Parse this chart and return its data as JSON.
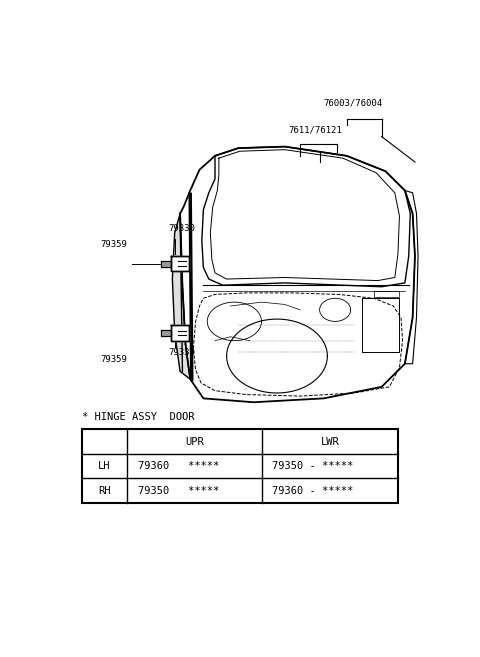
{
  "bg_color": "#ffffff",
  "part_labels_top_right": [
    "76003/76004",
    "7611/76121"
  ],
  "part_labels_left_upper": [
    "79359",
    "79330"
  ],
  "part_labels_left_lower": [
    "79330",
    "79359"
  ],
  "table_header": "* HINGE ASSY  DOOR",
  "table_col_headers": [
    "",
    "UPR",
    "LWR"
  ],
  "table_rows": [
    [
      "LH",
      "79360   *****",
      "79350 - *****"
    ],
    [
      "RH",
      "79350   *****",
      "79360 - *****"
    ]
  ],
  "line_color": "#000000",
  "text_color": "#000000",
  "font_size_labels": 6.5,
  "font_size_table": 7.5
}
